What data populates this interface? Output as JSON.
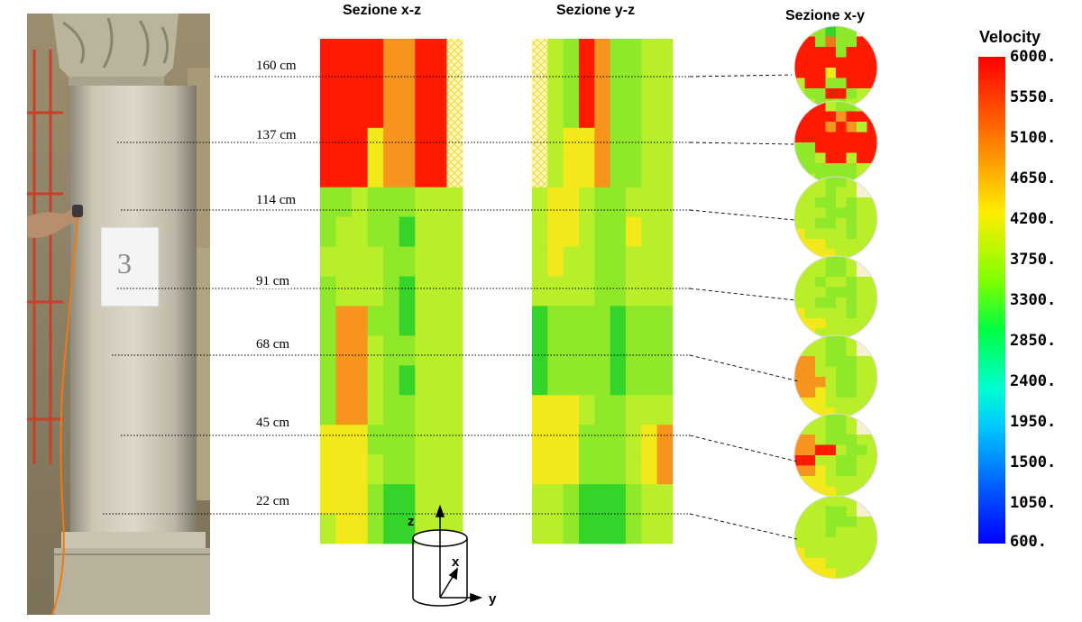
{
  "sections": {
    "xz_title": "Sezione x-z",
    "yz_title": "Sezione y-z",
    "xy_title": "Sezione x-y"
  },
  "heights": [
    "160 cm",
    "137 cm",
    "114 cm",
    "91 cm",
    "68 cm",
    "45 cm",
    "22 cm"
  ],
  "photo": {
    "sheet_label": "3"
  },
  "legend": {
    "title": "Velocity",
    "ticks": [
      "6000.",
      "5550.",
      "5100.",
      "4650.",
      "4200.",
      "3750.",
      "3300.",
      "2850.",
      "2400.",
      "1950.",
      "1500.",
      "1050.",
      "600."
    ],
    "min": 600,
    "max": 6000
  },
  "axes": {
    "z": "z",
    "x": "x",
    "y": "y"
  },
  "palette": {
    "red": "#ff1a00",
    "orange": "#f7941d",
    "dark_orange": "#ec7a18",
    "yellow": "#f2e81a",
    "light_yellow": "#e8f02a",
    "yellow_green": "#b9ee2a",
    "light_green": "#8fe82a",
    "green": "#5fdc2a",
    "dark_green": "#35d42a",
    "mid_green": "#46d836",
    "cream": "#f7f0cf"
  },
  "maps": {
    "xz_rows": [
      "RRRROORR#",
      "RRRROORR#",
      "RRRROORR#",
      "RRRYOORR#",
      "RRRYOORR#",
      "GGLGGGLLL",
      "GLLGGDLLL",
      "LLLLGGLLL",
      "GLLLGDLLL",
      "GOOGGDLLL",
      "GOOLGGLLL",
      "GOOLGDLLL",
      "GOOLGGLLL",
      "YYYGGGLLL",
      "YYYLGGLLL",
      "YYYGDDLLL",
      "LYYGDDLLL"
    ],
    "yz_rows": [
      "#LGROGGLL",
      "#LGROGGLL",
      "#LGROGGLL",
      "#LYYOGGLL",
      "#LYYOGGLL",
      "LYYLGGLLL",
      "LYYLGGYLL",
      "LYLLGGLLL",
      "LLLLGGLLL",
      "DGGGGDGGG",
      "DGGGGDGGG",
      "DGGGGDGGG",
      "YYYLGGLLL",
      "YYYGGGLYO",
      "YYYGGGLYO",
      "LLGDDDGLL",
      "LLGDDDGLL"
    ],
    "circles": [
      [
        "GGGDGGCC",
        "RRGMGGRR",
        "RRRRGRRR",
        "RRRRRRRR",
        "RRRYRRRR",
        "LRRGGRRR",
        "LGGRRGLL",
        "LLGGGLLL"
      ],
      [
        "LRRLGGLC",
        "RRRRORRR",
        "RRROROLR",
        "RRRRRRRR",
        "GGRRRRRR",
        "GGLRRLRR",
        "GGGGGGLL",
        "LLGGGGLL"
      ],
      [
        "LLLGGLCC",
        "LLLGLLCC",
        "LLGGLGLL",
        "LLLGGGLL",
        "LLGGLGLL",
        "YLLLLGLL",
        "YYYLLLLL",
        "YYYYLLLL"
      ],
      [
        "LLLGGLCC",
        "LLLGGLCC",
        "LLGLLGLL",
        "LLLGGGLL",
        "LLGGLGLL",
        "YLLLLGLL",
        "YYYLLLLL",
        "YYLLLLLL"
      ],
      [
        "LLLGGLCC",
        "LLLGGLCC",
        "OOLGGGLL",
        "OOLLGGLL",
        "OOOLGGLL",
        "OOYLGGLL",
        "YYYLLLLL",
        "YYYYLLLL"
      ],
      [
        "LLLGGLCC",
        "LLLGGLCC",
        "OOLGGGLL",
        "OORRLGGL",
        "RRLLGGLL",
        "OOYLGGLL",
        "YYYLLLLL",
        "YYYYLLLL"
      ],
      [
        "LLLLLLCC",
        "LLLGGLCC",
        "LLLGGGLL",
        "LLLGLLLL",
        "LLLLLLLL",
        "YLLLLLLL",
        "YYYLLLLL",
        "YYYYLLLL"
      ]
    ]
  }
}
